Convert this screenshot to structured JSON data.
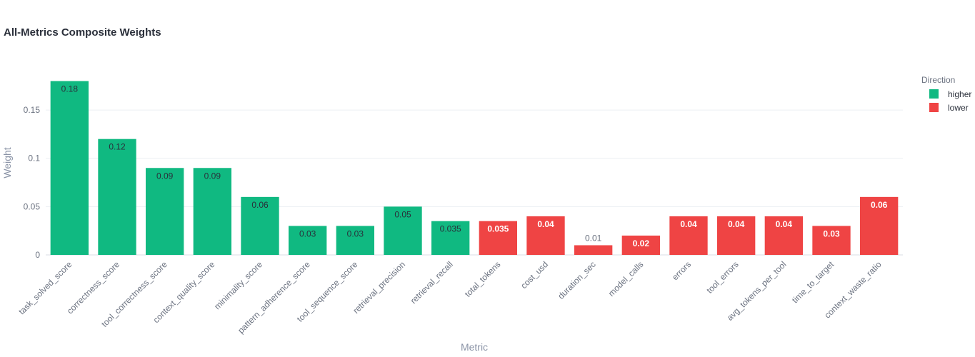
{
  "chart_data": {
    "type": "bar",
    "title": "All-Metrics Composite Weights",
    "xlabel": "Metric",
    "ylabel": "Weight",
    "ylim": [
      0,
      0.19
    ],
    "yticks": [
      0,
      0.05,
      0.1,
      0.15
    ],
    "ytick_labels": [
      "0",
      "0.05",
      "0.1",
      "0.15"
    ],
    "grid": true,
    "legend": {
      "title": "Direction",
      "placement": "top-right",
      "items": [
        {
          "name": "higher",
          "color": "#10b981"
        },
        {
          "name": "lower",
          "color": "#ef4444"
        }
      ]
    },
    "categories": [
      "task_solved_score",
      "correctness_score",
      "tool_correctness_score",
      "context_quality_score",
      "minimality_score",
      "pattern_adherence_score",
      "tool_sequence_score",
      "retrieval_precision",
      "retrieval_recall",
      "total_tokens",
      "cost_usd",
      "duration_sec",
      "model_calls",
      "errors",
      "tool_errors",
      "avg_tokens_per_tool",
      "time_to_target",
      "context_waste_ratio"
    ],
    "values": [
      0.18,
      0.12,
      0.09,
      0.09,
      0.06,
      0.03,
      0.03,
      0.05,
      0.035,
      0.035,
      0.04,
      0.01,
      0.02,
      0.04,
      0.04,
      0.04,
      0.03,
      0.06
    ],
    "labels": [
      "0.18",
      "0.12",
      "0.09",
      "0.09",
      "0.06",
      "0.03",
      "0.03",
      "0.05",
      "0.035",
      "0.035",
      "0.04",
      "0.01",
      "0.02",
      "0.04",
      "0.04",
      "0.04",
      "0.03",
      "0.06"
    ],
    "direction": [
      "higher",
      "higher",
      "higher",
      "higher",
      "higher",
      "higher",
      "higher",
      "higher",
      "higher",
      "lower",
      "lower",
      "lower",
      "lower",
      "lower",
      "lower",
      "lower",
      "lower",
      "lower"
    ]
  }
}
